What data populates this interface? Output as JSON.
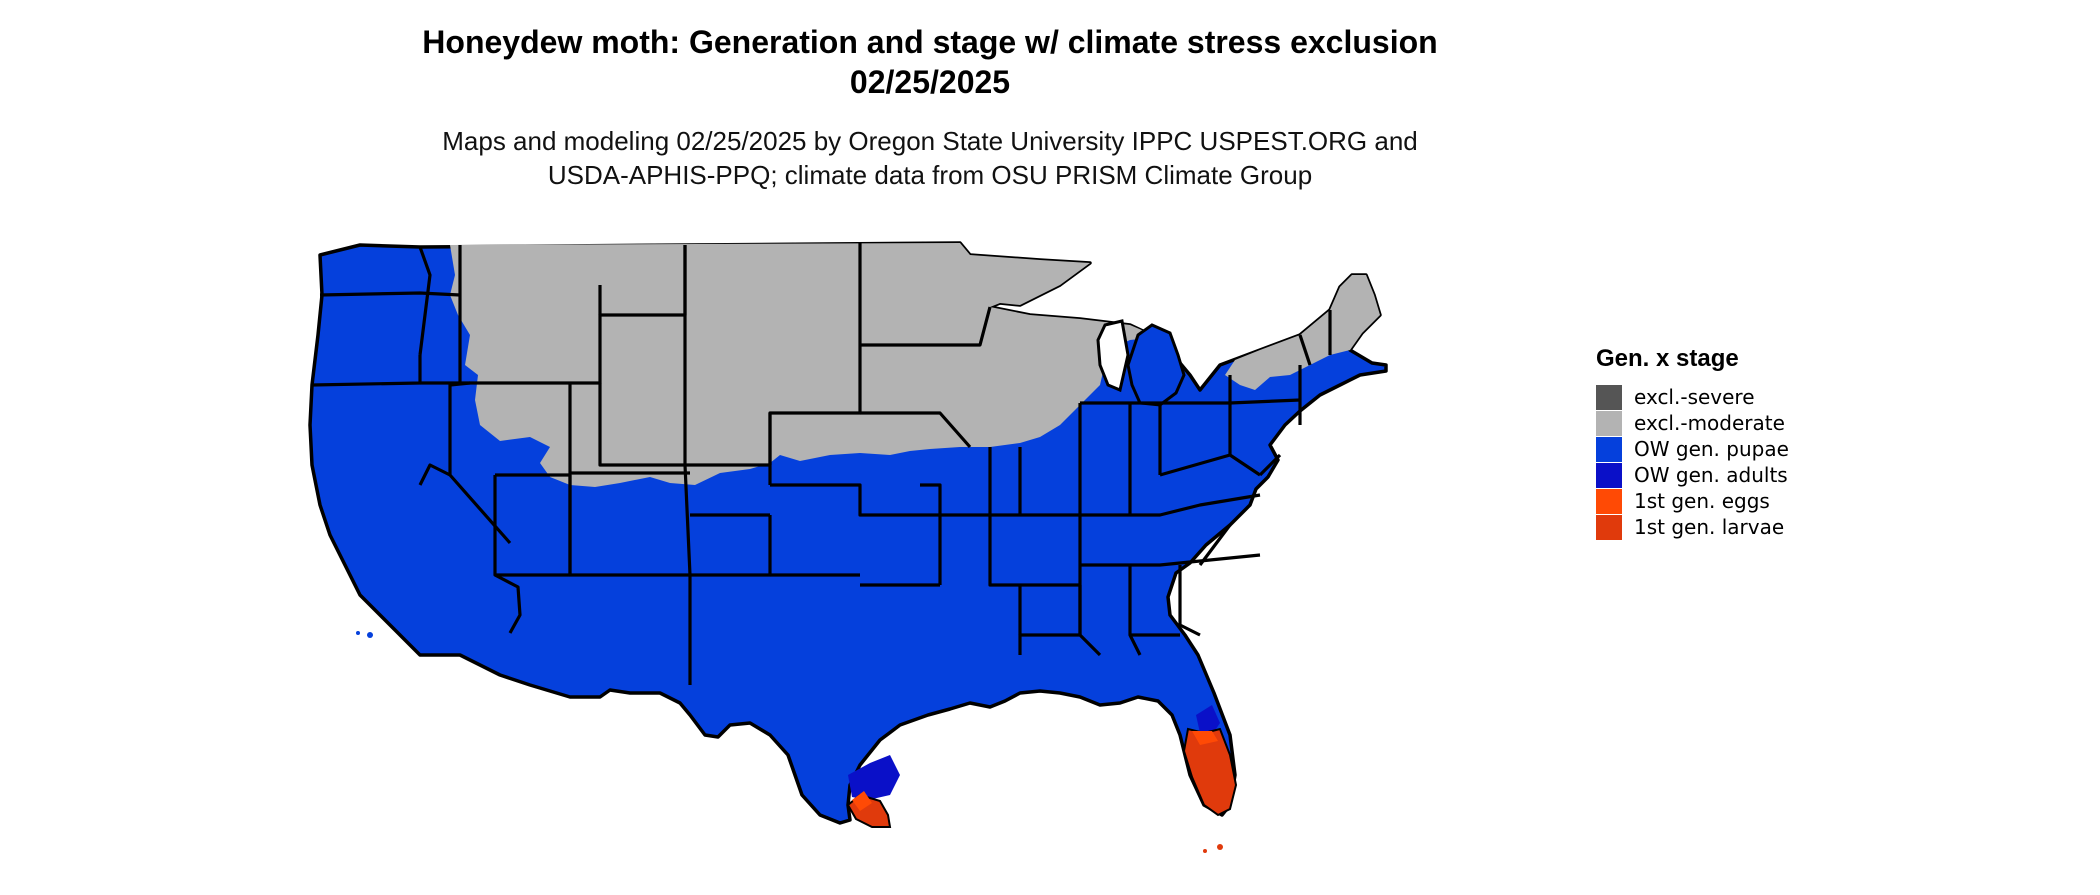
{
  "title_line1": "Honeydew moth: Generation and stage w/ climate stress exclusion",
  "title_line2": "02/25/2025",
  "subtitle_line1": "Maps and modeling 02/25/2025 by Oregon State University IPPC USPEST.ORG and",
  "subtitle_line2": "USDA-APHIS-PPQ; climate data from OSU PRISM Climate Group",
  "legend": {
    "title": "Gen. x stage",
    "items": [
      {
        "label": "excl.-severe",
        "color": "#555555"
      },
      {
        "label": "excl.-moderate",
        "color": "#b3b3b3"
      },
      {
        "label": "OW gen. pupae",
        "color": "#0540dc"
      },
      {
        "label": "OW gen. adults",
        "color": "#0a10c8"
      },
      {
        "label": "1st gen. eggs",
        "color": "#ff4a05"
      },
      {
        "label": "1st gen. larvae",
        "color": "#e03a0c"
      }
    ]
  }
}
